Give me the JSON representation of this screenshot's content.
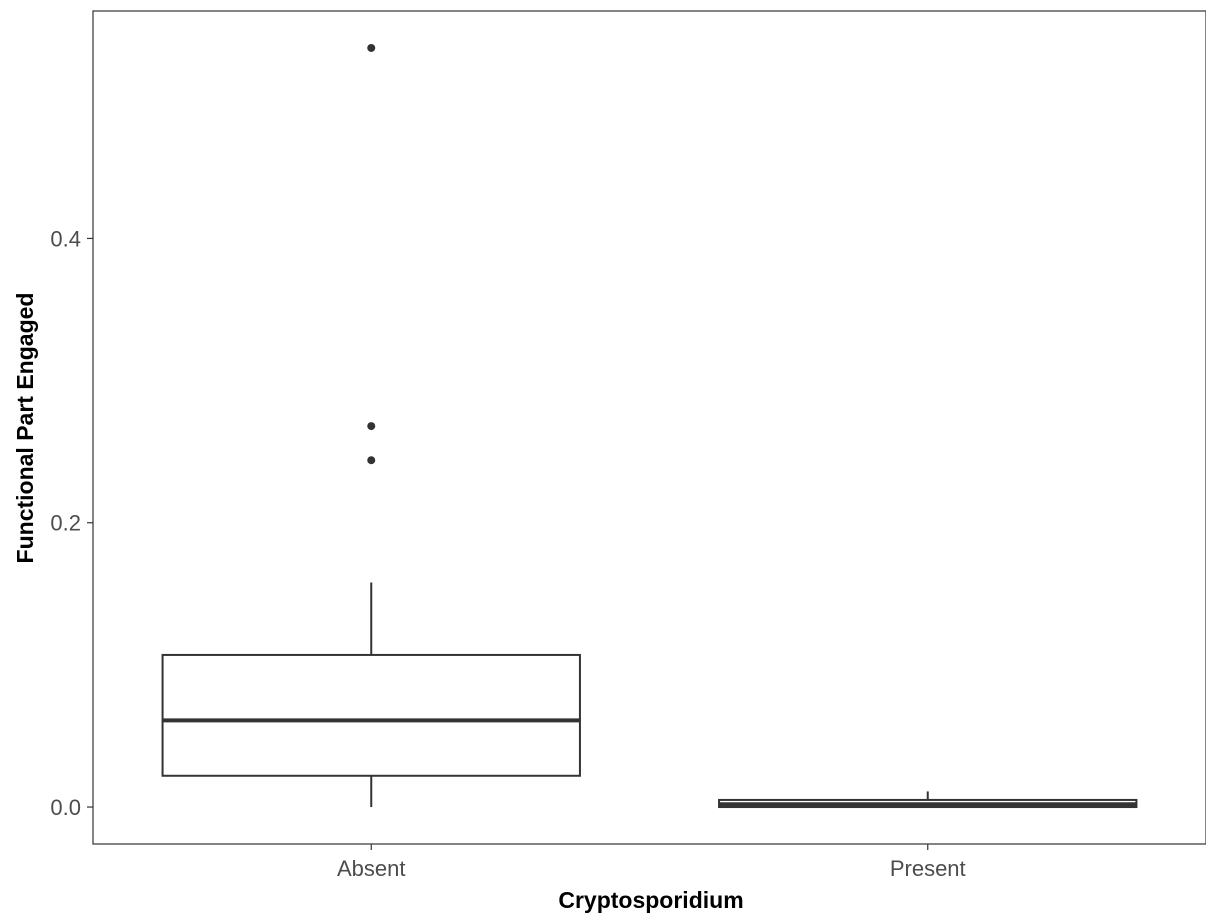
{
  "chart_data": {
    "type": "boxplot",
    "title": "",
    "xlabel": "Cryptosporidium",
    "ylabel": "Functional Part Engaged",
    "categories": [
      "Absent",
      "Present"
    ],
    "ylim": [
      -0.026,
      0.56
    ],
    "yticks": [
      0.0,
      0.2,
      0.4
    ],
    "ytick_labels": [
      "0.0",
      "0.2",
      "0.4"
    ],
    "grid": false,
    "legend": "none",
    "boxes": [
      {
        "category": "Absent",
        "whisker_low": 0.0,
        "q1": 0.022,
        "median": 0.061,
        "q3": 0.107,
        "whisker_high": 0.158,
        "outliers": [
          0.244,
          0.268,
          0.534
        ]
      },
      {
        "category": "Present",
        "whisker_low": 0.0,
        "q1": 0.0,
        "median": 0.002,
        "q3": 0.005,
        "whisker_high": 0.011,
        "outliers": []
      }
    ],
    "colors": {
      "stroke": "#333333",
      "axis_text": "#4d4d4d",
      "panel_border": "#333333"
    }
  }
}
